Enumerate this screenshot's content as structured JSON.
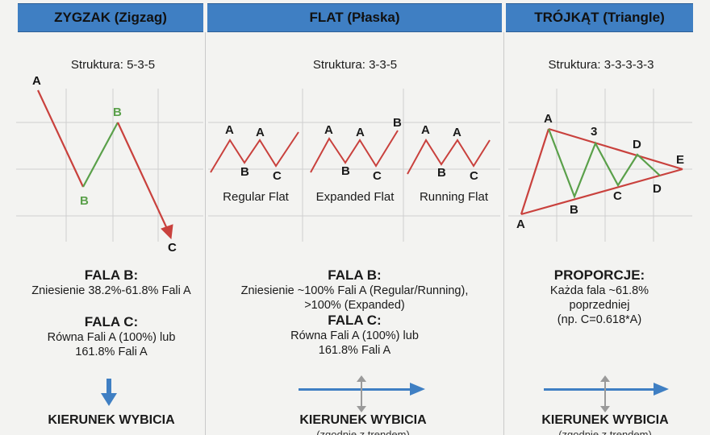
{
  "columns": {
    "zigzag": {
      "title": "ZYGZAK (Zigzag)",
      "structure": "Struktura: 5-3-5",
      "labels": {
        "a": "A",
        "b1": "B",
        "b2": "B",
        "c": "C"
      },
      "info": {
        "head1": "FALA B:",
        "line1": "Zniesienie 38.2%-61.8% Fali A",
        "head2": "FALA C:",
        "line2": "Równa Fali A (100%) lub",
        "line3": "161.8% Fali A"
      },
      "direction_title": "KIERUNEK WYBICIA"
    },
    "flat": {
      "title": "FLAT (Płaska)",
      "structure": "Struktura: 3-3-5",
      "variants": [
        {
          "name": "Regular Flat"
        },
        {
          "name": "Expanded Flat"
        },
        {
          "name": "Running Flat"
        }
      ],
      "wave_labels": {
        "a": "A",
        "b": "B",
        "c": "C"
      },
      "info": {
        "head1": "FALA B:",
        "line1": "Zniesienie ~100% Fali A (Regular/Running),",
        "line1b": ">100% (Expanded)",
        "head2": "FALA C:",
        "line2": "Równa Fali A (100%) lub",
        "line3": "161.8% Fali A"
      },
      "direction_title": "KIERUNEK WYBICIA",
      "direction_sub": "(zgodnie z trendem)"
    },
    "triangle": {
      "title": "TRÓJKĄT (Triangle)",
      "structure": "Struktura: 3-3-3-3-3",
      "labels": {
        "a_top": "A",
        "a_bottom": "A",
        "b": "B",
        "three": "3",
        "c": "C",
        "d_top": "D",
        "d_bottom": "D",
        "e": "E"
      },
      "info": {
        "head1": "PROPORCJE:",
        "line1": "Każda fala ~61.8%",
        "line2": "poprzedniej",
        "line3": "(np. C=0.618*A)"
      },
      "direction_title": "KIERUNEK WYBICIA",
      "direction_sub": "(zgodnie z trendem)"
    }
  },
  "colors": {
    "header": "#3f7fc3",
    "wave_red": "#c9413d",
    "wave_green": "#5aa04a",
    "arrow_blue": "#3f7fc3",
    "arrow_grey": "#9a9a9a",
    "grid": "#cfcfcf"
  }
}
